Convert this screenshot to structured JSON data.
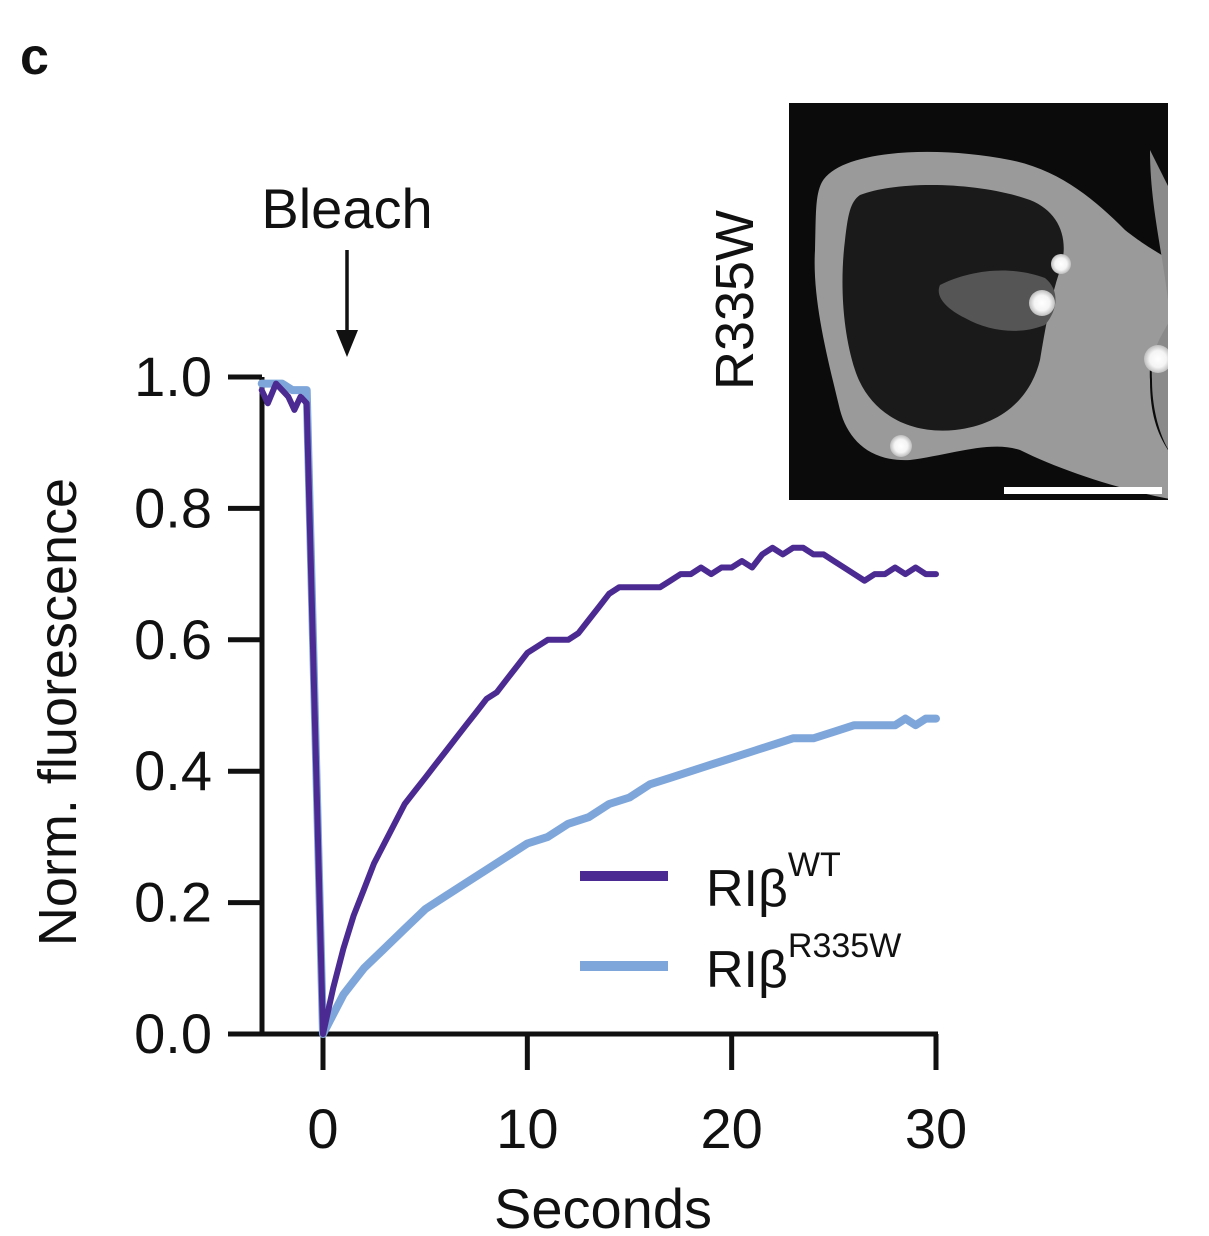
{
  "panel_label": "c",
  "annotation": {
    "text": "Bleach"
  },
  "inset": {
    "label": "R335W"
  },
  "colors": {
    "wt": "#4b2b91",
    "mut": "#7fa6da",
    "axis": "#111111"
  },
  "chart_data": {
    "type": "line",
    "title": "",
    "xlabel": "Seconds",
    "ylabel": "Norm. fluorescence",
    "xlim": [
      -3,
      30
    ],
    "ylim": [
      0,
      1.0
    ],
    "xticks": [
      0,
      10,
      20,
      30
    ],
    "yticks": [
      0.0,
      0.2,
      0.4,
      0.6,
      0.8,
      1.0
    ],
    "xtick_labels": [
      "0",
      "10",
      "20",
      "30"
    ],
    "ytick_labels": [
      "0.0",
      "0.2",
      "0.4",
      "0.6",
      "0.8",
      "1.0"
    ],
    "grid": false,
    "legend_position": "bottom-right",
    "series": [
      {
        "name": "RIβ",
        "name_sup": "WT",
        "color": "#4b2b91",
        "points": [
          [
            -3.0,
            0.98
          ],
          [
            -2.7,
            0.96
          ],
          [
            -2.3,
            0.99
          ],
          [
            -2.0,
            0.98
          ],
          [
            -1.7,
            0.97
          ],
          [
            -1.4,
            0.95
          ],
          [
            -1.1,
            0.97
          ],
          [
            -0.8,
            0.96
          ],
          [
            0.0,
            0.0
          ],
          [
            0.5,
            0.07
          ],
          [
            1.0,
            0.13
          ],
          [
            1.5,
            0.18
          ],
          [
            2.0,
            0.22
          ],
          [
            2.5,
            0.26
          ],
          [
            3.0,
            0.29
          ],
          [
            3.5,
            0.32
          ],
          [
            4.0,
            0.35
          ],
          [
            4.5,
            0.37
          ],
          [
            5.0,
            0.39
          ],
          [
            5.5,
            0.41
          ],
          [
            6.0,
            0.43
          ],
          [
            6.5,
            0.45
          ],
          [
            7.0,
            0.47
          ],
          [
            7.5,
            0.49
          ],
          [
            8.0,
            0.51
          ],
          [
            8.5,
            0.52
          ],
          [
            9.0,
            0.54
          ],
          [
            9.5,
            0.56
          ],
          [
            10.0,
            0.58
          ],
          [
            10.5,
            0.59
          ],
          [
            11.0,
            0.6
          ],
          [
            11.5,
            0.6
          ],
          [
            12.0,
            0.6
          ],
          [
            12.5,
            0.61
          ],
          [
            13.0,
            0.63
          ],
          [
            13.5,
            0.65
          ],
          [
            14.0,
            0.67
          ],
          [
            14.5,
            0.68
          ],
          [
            15.0,
            0.68
          ],
          [
            15.5,
            0.68
          ],
          [
            16.0,
            0.68
          ],
          [
            16.5,
            0.68
          ],
          [
            17.0,
            0.69
          ],
          [
            17.5,
            0.7
          ],
          [
            18.0,
            0.7
          ],
          [
            18.5,
            0.71
          ],
          [
            19.0,
            0.7
          ],
          [
            19.5,
            0.71
          ],
          [
            20.0,
            0.71
          ],
          [
            20.5,
            0.72
          ],
          [
            21.0,
            0.71
          ],
          [
            21.5,
            0.73
          ],
          [
            22.0,
            0.74
          ],
          [
            22.5,
            0.73
          ],
          [
            23.0,
            0.74
          ],
          [
            23.5,
            0.74
          ],
          [
            24.0,
            0.73
          ],
          [
            24.5,
            0.73
          ],
          [
            25.0,
            0.72
          ],
          [
            25.5,
            0.71
          ],
          [
            26.0,
            0.7
          ],
          [
            26.5,
            0.69
          ],
          [
            27.0,
            0.7
          ],
          [
            27.5,
            0.7
          ],
          [
            28.0,
            0.71
          ],
          [
            28.5,
            0.7
          ],
          [
            29.0,
            0.71
          ],
          [
            29.5,
            0.7
          ],
          [
            30.0,
            0.7
          ]
        ]
      },
      {
        "name": "RIβ",
        "name_sup": "R335W",
        "color": "#7fa6da",
        "points": [
          [
            -3.0,
            0.99
          ],
          [
            -2.5,
            0.99
          ],
          [
            -2.0,
            0.99
          ],
          [
            -1.5,
            0.98
          ],
          [
            -1.0,
            0.98
          ],
          [
            -0.8,
            0.98
          ],
          [
            0.0,
            0.0
          ],
          [
            0.5,
            0.03
          ],
          [
            1.0,
            0.06
          ],
          [
            1.5,
            0.08
          ],
          [
            2.0,
            0.1
          ],
          [
            3.0,
            0.13
          ],
          [
            4.0,
            0.16
          ],
          [
            5.0,
            0.19
          ],
          [
            6.0,
            0.21
          ],
          [
            7.0,
            0.23
          ],
          [
            8.0,
            0.25
          ],
          [
            9.0,
            0.27
          ],
          [
            10.0,
            0.29
          ],
          [
            11.0,
            0.3
          ],
          [
            12.0,
            0.32
          ],
          [
            13.0,
            0.33
          ],
          [
            14.0,
            0.35
          ],
          [
            15.0,
            0.36
          ],
          [
            16.0,
            0.38
          ],
          [
            17.0,
            0.39
          ],
          [
            18.0,
            0.4
          ],
          [
            19.0,
            0.41
          ],
          [
            20.0,
            0.42
          ],
          [
            21.0,
            0.43
          ],
          [
            22.0,
            0.44
          ],
          [
            23.0,
            0.45
          ],
          [
            24.0,
            0.45
          ],
          [
            25.0,
            0.46
          ],
          [
            26.0,
            0.47
          ],
          [
            27.0,
            0.47
          ],
          [
            28.0,
            0.47
          ],
          [
            28.5,
            0.48
          ],
          [
            29.0,
            0.47
          ],
          [
            29.5,
            0.48
          ],
          [
            30.0,
            0.48
          ]
        ]
      }
    ]
  }
}
